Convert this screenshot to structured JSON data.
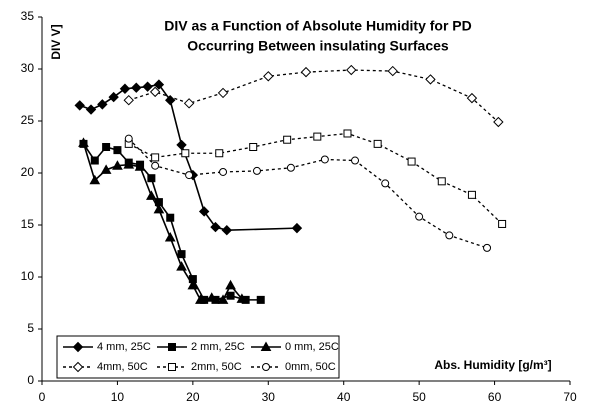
{
  "chart_data": {
    "type": "line",
    "title": "DIV as a Function of Absolute Humidity for PD",
    "subtitle": "Occurring Between insulating Surfaces",
    "y_label": "DIV   V]",
    "x_label": "Abs. Humidity [g/m³]",
    "xlim": [
      0,
      70
    ],
    "xticks": [
      0,
      10,
      20,
      30,
      40,
      50,
      60,
      70
    ],
    "ylim": [
      0,
      35
    ],
    "yticks": [
      0,
      5,
      10,
      15,
      20,
      25,
      30,
      35
    ],
    "legend": "bottom-left",
    "series": [
      {
        "name": "4 mm, 25C",
        "color": "#000000",
        "marker": "diamond",
        "filled": true,
        "dashed": false,
        "x": [
          5,
          6.5,
          8,
          9.5,
          11,
          12.5,
          14,
          15.5,
          17,
          18.5,
          20,
          21.5,
          23,
          24.5,
          33.8
        ],
        "values": [
          26.5,
          26.1,
          26.6,
          27.3,
          28.1,
          28.2,
          28.3,
          28.5,
          27,
          22.7,
          19.8,
          16.3,
          14.8,
          14.5,
          14.7
        ]
      },
      {
        "name": "2 mm, 25C",
        "color": "#000000",
        "marker": "square",
        "filled": true,
        "dashed": false,
        "x": [
          5.5,
          7,
          8.5,
          10,
          11.5,
          13,
          14.5,
          15.5,
          17,
          18.5,
          20,
          21.5,
          23,
          25,
          27,
          29
        ],
        "values": [
          22.8,
          21.2,
          22.5,
          22.2,
          21,
          20.8,
          19.5,
          17.2,
          15.7,
          12.2,
          9.8,
          7.8,
          7.8,
          8.2,
          7.8,
          7.8
        ]
      },
      {
        "name": "0 mm, 25C",
        "color": "#000000",
        "marker": "triangle",
        "filled": true,
        "dashed": false,
        "x": [
          5.5,
          7,
          8.5,
          10,
          11.5,
          13,
          14.5,
          15.5,
          17,
          18.5,
          20,
          21,
          22.5,
          24,
          25,
          26.5
        ],
        "values": [
          22.9,
          19.3,
          20.3,
          20.7,
          20.8,
          20.6,
          17.8,
          16.5,
          13.8,
          11,
          9.2,
          7.8,
          8,
          7.8,
          9.2,
          7.9
        ]
      },
      {
        "name": "4mm, 50C",
        "color": "#000000",
        "marker": "diamond",
        "filled": false,
        "dashed": true,
        "x": [
          11.5,
          15,
          19.5,
          24,
          30,
          35,
          41,
          46.5,
          51.5,
          57,
          60.5
        ],
        "values": [
          27,
          27.8,
          26.7,
          27.7,
          29.3,
          29.7,
          29.9,
          29.8,
          29,
          27.2,
          24.9
        ]
      },
      {
        "name": "2mm, 50C",
        "color": "#000000",
        "marker": "square",
        "filled": false,
        "dashed": true,
        "x": [
          11.5,
          15,
          19,
          23.5,
          28,
          32.5,
          36.5,
          40.5,
          44.5,
          49,
          53,
          57,
          61
        ],
        "values": [
          22.8,
          21.5,
          21.9,
          21.9,
          22.5,
          23.2,
          23.5,
          23.8,
          22.8,
          21.1,
          19.2,
          17.9,
          15.1
        ]
      },
      {
        "name": "0mm, 50C",
        "color": "#000000",
        "marker": "circle",
        "filled": false,
        "dashed": true,
        "x": [
          11.5,
          15,
          19.5,
          24,
          28.5,
          33,
          37.5,
          41.5,
          45.5,
          50,
          54,
          59
        ],
        "values": [
          23.3,
          20.7,
          19.8,
          20.1,
          20.2,
          20.5,
          21.3,
          21.2,
          19,
          15.8,
          14,
          12.8
        ]
      }
    ]
  }
}
